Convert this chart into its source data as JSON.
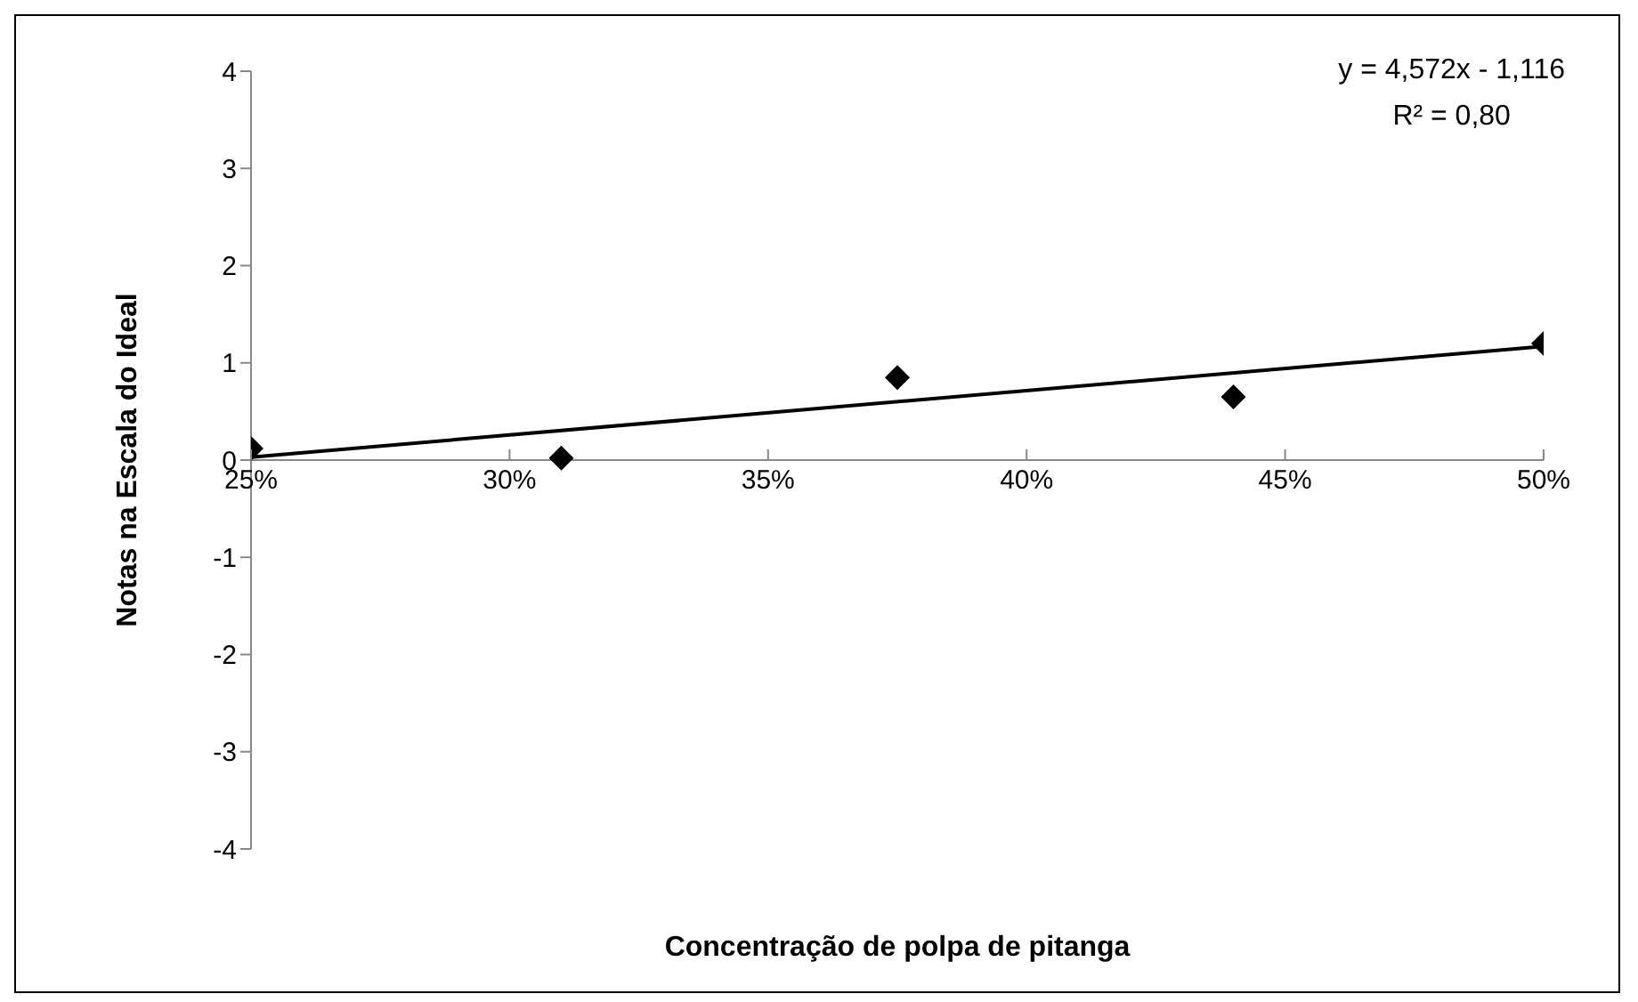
{
  "chart_data": {
    "type": "scatter",
    "xlabel": "Concentração de polpa de pitanga",
    "ylabel": "Notas na Escala  do Ideal",
    "marker": "diamond",
    "xlim": [
      0.25,
      0.5
    ],
    "xticks": [
      {
        "value": 0.25,
        "label": "25%"
      },
      {
        "value": 0.3,
        "label": "30%"
      },
      {
        "value": 0.35,
        "label": "35%"
      },
      {
        "value": 0.4,
        "label": "40%"
      },
      {
        "value": 0.45,
        "label": "45%"
      },
      {
        "value": 0.5,
        "label": "50%"
      }
    ],
    "ylim": [
      -4,
      4
    ],
    "yticks": [
      -4,
      -3,
      -2,
      -1,
      0,
      1,
      2,
      3,
      4
    ],
    "annotations": [
      "y = 4,572x - 1,116",
      "R² = 0,80"
    ],
    "series": [
      {
        "color": "#000000",
        "x": [
          0.25,
          0.31,
          0.375,
          0.44,
          0.5
        ],
        "values": [
          0.12,
          0.02,
          0.85,
          0.65,
          1.2
        ]
      },
      {
        "type": "line",
        "marker": "none",
        "color": "#000000",
        "x": [
          0.25,
          0.5
        ],
        "values": [
          0.03,
          1.17
        ]
      }
    ]
  }
}
